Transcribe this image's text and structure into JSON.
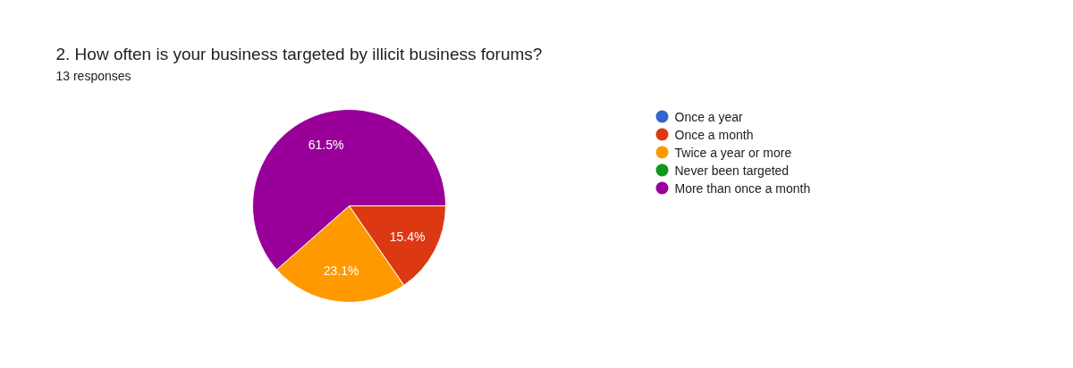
{
  "chart_data": {
    "type": "pie",
    "title": "2. How often is your business targeted by illicit business forums?",
    "subtitle": "13 responses",
    "categories": [
      "Once a year",
      "Once a month",
      "Twice a year or more",
      "Never been targeted",
      "More than once a month"
    ],
    "values": [
      0,
      15.4,
      23.1,
      0,
      61.5
    ],
    "colors": [
      "#3366cc",
      "#dc3912",
      "#ff9900",
      "#109618",
      "#990099"
    ],
    "value_labels": [
      null,
      "15.4%",
      "23.1%",
      null,
      "61.5%"
    ],
    "legend": "right"
  }
}
